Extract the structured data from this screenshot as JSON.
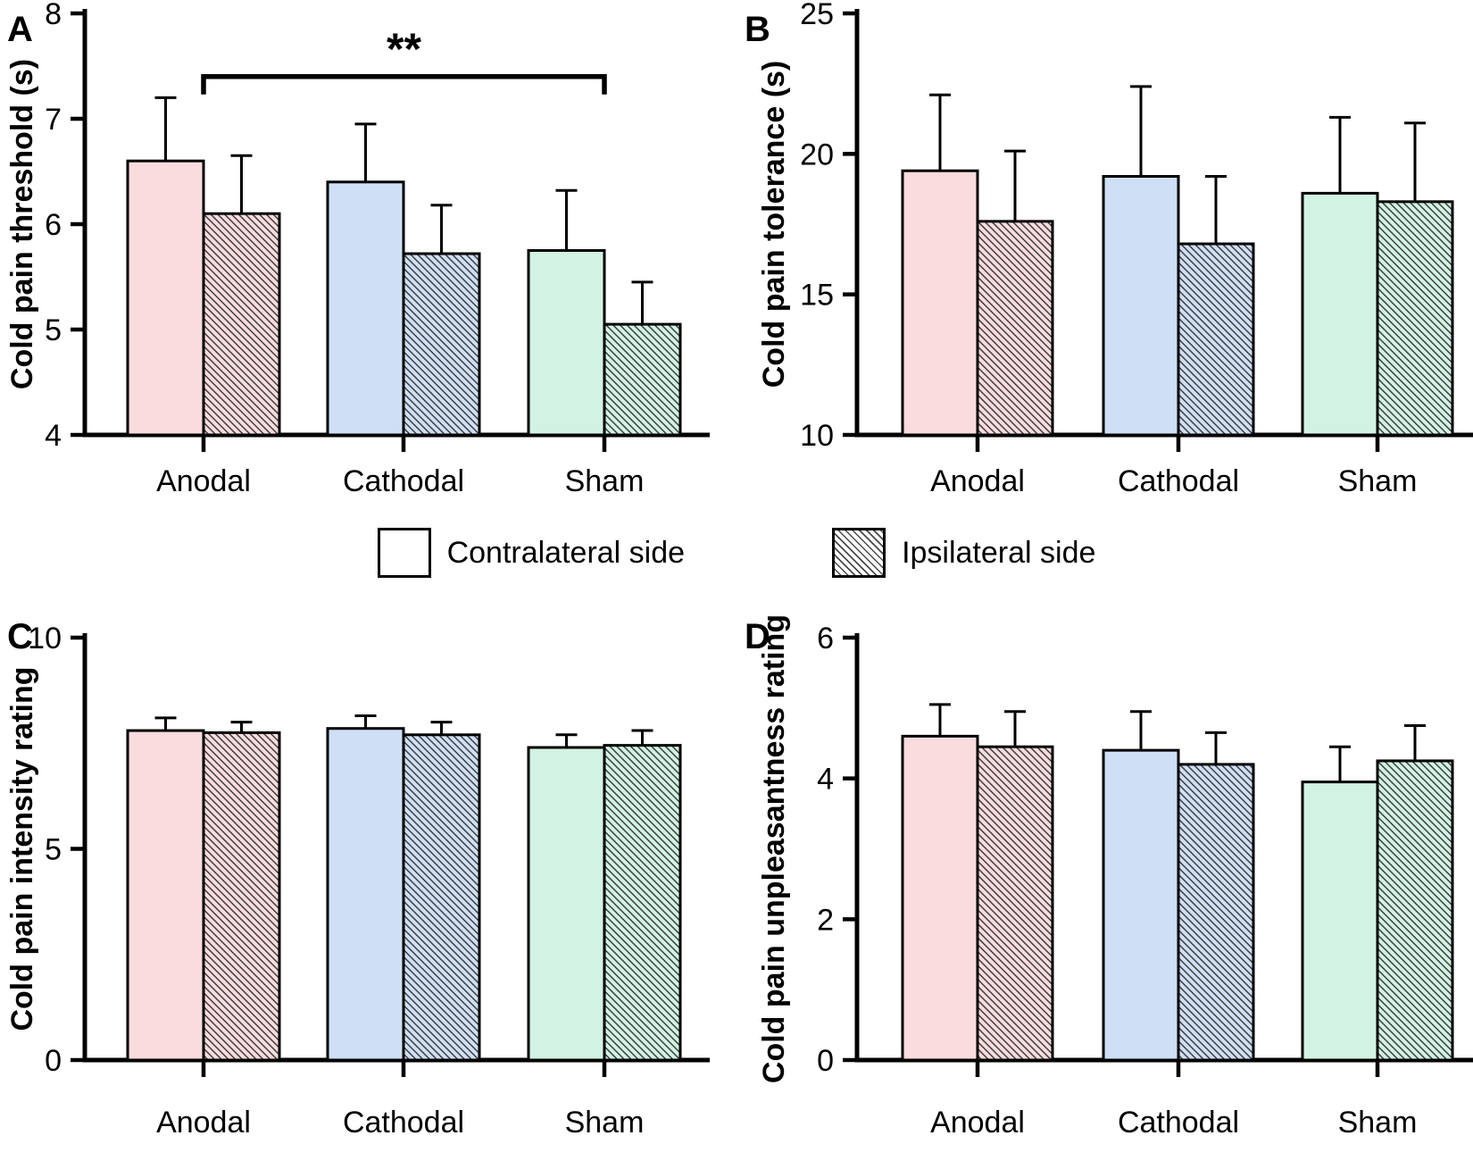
{
  "colors": {
    "background": "#ffffff",
    "axis": "#000000",
    "bar_outline": "#000000",
    "hatch_line": "#3f3f3f",
    "groups": {
      "Anodal": "#fbdcde",
      "Cathodal": "#cfe0f6",
      "Sham": "#d2f3e4"
    }
  },
  "legend": {
    "items": [
      {
        "label": "Contralateral side",
        "swatch": "open"
      },
      {
        "label": "Ipsilateral side",
        "swatch": "hatched"
      }
    ]
  },
  "chart_data": [
    {
      "id": "A",
      "type": "bar",
      "panel_label": "A",
      "ylabel": "Cold pain threshold (s)",
      "ylim": [
        4,
        8
      ],
      "yticks": [
        4,
        5,
        6,
        7,
        8
      ],
      "categories": [
        "Anodal",
        "Cathodal",
        "Sham"
      ],
      "series": [
        {
          "name": "Contralateral side",
          "pattern": "solid",
          "values": [
            6.6,
            6.4,
            5.75
          ],
          "errors_up": [
            0.6,
            0.55,
            0.57
          ]
        },
        {
          "name": "Ipsilateral side",
          "pattern": "hatched",
          "values": [
            6.1,
            5.72,
            5.05
          ],
          "errors_up": [
            0.55,
            0.46,
            0.4
          ]
        }
      ],
      "significance": {
        "label": "**",
        "from": "Anodal",
        "to": "Sham",
        "bar_y": 7.4
      },
      "legend_position": "below-figure-center",
      "grid": false
    },
    {
      "id": "B",
      "type": "bar",
      "panel_label": "B",
      "ylabel": "Cold pain tolerance (s)",
      "ylim": [
        10,
        25
      ],
      "yticks": [
        10,
        15,
        20,
        25
      ],
      "categories": [
        "Anodal",
        "Cathodal",
        "Sham"
      ],
      "series": [
        {
          "name": "Contralateral side",
          "pattern": "solid",
          "values": [
            19.4,
            19.2,
            18.6
          ],
          "errors_up": [
            2.7,
            3.2,
            2.7
          ]
        },
        {
          "name": "Ipsilateral side",
          "pattern": "hatched",
          "values": [
            17.6,
            16.8,
            18.3
          ],
          "errors_up": [
            2.5,
            2.4,
            2.8
          ]
        }
      ],
      "significance": null,
      "grid": false
    },
    {
      "id": "C",
      "type": "bar",
      "panel_label": "C",
      "ylabel": "Cold pain intensity rating",
      "ylim": [
        0,
        10
      ],
      "yticks": [
        0,
        5,
        10
      ],
      "categories": [
        "Anodal",
        "Cathodal",
        "Sham"
      ],
      "series": [
        {
          "name": "Contralateral side",
          "pattern": "solid",
          "values": [
            7.8,
            7.85,
            7.4
          ],
          "errors_up": [
            0.3,
            0.3,
            0.3
          ]
        },
        {
          "name": "Ipsilateral side",
          "pattern": "hatched",
          "values": [
            7.75,
            7.7,
            7.45
          ],
          "errors_up": [
            0.25,
            0.3,
            0.35
          ]
        }
      ],
      "significance": null,
      "grid": false
    },
    {
      "id": "D",
      "type": "bar",
      "panel_label": "D",
      "ylabel": "Cold pain unpleasantness rating",
      "ylim": [
        0,
        6
      ],
      "yticks": [
        0,
        2,
        4,
        6
      ],
      "categories": [
        "Anodal",
        "Cathodal",
        "Sham"
      ],
      "series": [
        {
          "name": "Contralateral side",
          "pattern": "solid",
          "values": [
            4.6,
            4.4,
            3.95
          ],
          "errors_up": [
            0.45,
            0.55,
            0.5
          ]
        },
        {
          "name": "Ipsilateral side",
          "pattern": "hatched",
          "values": [
            4.45,
            4.2,
            4.25
          ],
          "errors_up": [
            0.5,
            0.45,
            0.5
          ]
        }
      ],
      "significance": null,
      "grid": false
    }
  ]
}
